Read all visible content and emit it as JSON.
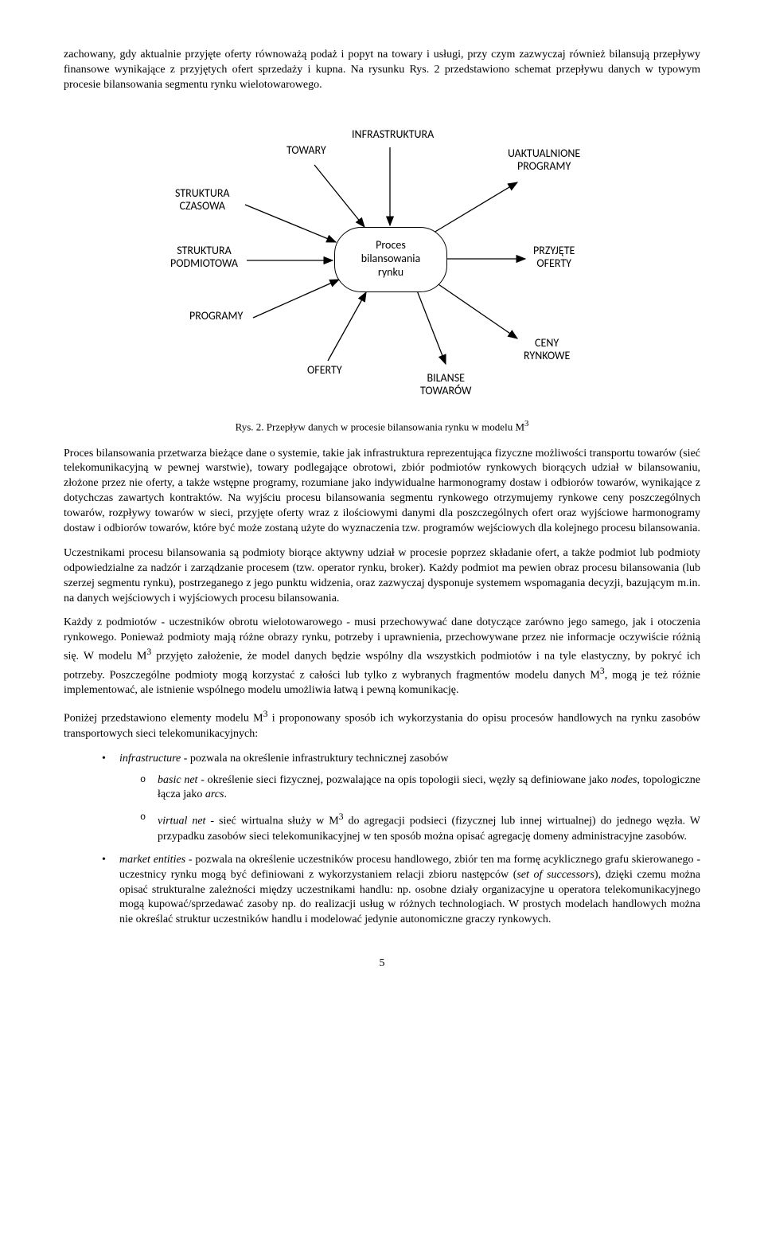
{
  "intro": "zachowany, gdy aktualnie przyjęte oferty równoważą podaż i popyt na towary i usługi, przy czym zazwyczaj również bilansują przepływy finansowe wynikające z przyjętych ofert sprzedaży i kupna. Na rysunku Rys. 2 przedstawiono schemat przepływu danych w typowym procesie bilansowania segmentu rynku wielotowarowego.",
  "diagram": {
    "center": "Proces\nbilansowania\nrynku",
    "labels": {
      "towary": "TOWARY",
      "infra": "INFRASTRUKTURA",
      "uakt": "UAKTUALNIONE\nPROGRAMY",
      "str_czas": "STRUKTURA\nCZASOWA",
      "str_podm": "STRUKTURA\nPODMIOTOWA",
      "przyjete": "PRZYJĘTE\nOFERTY",
      "programy": "PROGRAMY",
      "oferty": "OFERTY",
      "bilanse": "BILANSE\nTOWARÓW",
      "ceny": "CENY\nRYNKOWE"
    },
    "arrows_color": "#000000",
    "caption_prefix": "Rys. 2. ",
    "caption_rest": "Przepływ danych w procesie bilansowania rynku w modelu M",
    "caption_sup": "3"
  },
  "p1": "Proces bilansowania przetwarza bieżące dane o systemie, takie jak infrastruktura reprezentująca fizyczne możliwości transportu towarów (sieć telekomunikacyjną w pewnej warstwie), towary podlegające obrotowi, zbiór podmiotów rynkowych biorących udział w bilansowaniu, złożone przez nie oferty, a także wstępne programy, rozumiane jako indywidualne harmonogramy dostaw i odbiorów towarów, wynikające z dotychczas zawartych kontraktów. Na wyjściu procesu bilansowania segmentu rynkowego otrzymujemy rynkowe ceny poszczególnych towarów, rozpływy towarów w sieci, przyjęte oferty wraz z ilościowymi danymi dla poszczególnych ofert oraz wyjściowe harmonogramy dostaw i odbiorów towarów, które być może zostaną użyte do wyznaczenia tzw. programów wejściowych dla kolejnego procesu bilansowania.",
  "p2": "Uczestnikami procesu bilansowania są podmioty biorące aktywny udział w procesie poprzez składanie ofert, a także podmiot lub podmioty odpowiedzialne za nadzór i zarządzanie procesem (tzw. operator rynku, broker). Każdy podmiot ma pewien obraz procesu bilansowania (lub szerzej segmentu rynku), postrzeganego z jego punktu widzenia, oraz zazwyczaj dysponuje systemem wspomagania decyzji, bazującym m.in. na danych wejściowych i wyjściowych procesu bilansowania.",
  "p3_a": "Każdy z podmiotów - uczestników obrotu wielotowarowego - musi przechowywać dane dotyczące zarówno jego samego, jak i otoczenia rynkowego. Ponieważ podmioty mają różne obrazy rynku, potrzeby i uprawnienia, przechowywane przez nie informacje oczywiście różnią się. W modelu M",
  "p3_b": " przyjęto założenie, że model danych będzie wspólny dla wszystkich podmiotów i na tyle elastyczny, by pokryć ich potrzeby. Poszczególne podmioty mogą korzystać z całości lub tylko z wybranych fragmentów modelu danych M",
  "p3_c": ", mogą je też różnie implementować, ale istnienie wspólnego modelu umożliwia łatwą i pewną komunikację.",
  "p4_a": "Poniżej przedstawiono elementy modelu M",
  "p4_b": " i proponowany sposób ich wykorzystania do opisu procesów handlowych na rynku zasobów transportowych sieci telekomunikacyjnych:",
  "sup3": "3",
  "bullets": {
    "b1_label": "infrastructure",
    "b1_rest": " - pozwala na określenie infrastruktury technicznej zasobów",
    "b1a_label": "basic net",
    "b1a_rest_a": " - określenie sieci fizycznej, pozwalające na opis topologii sieci, węzły są definiowane jako ",
    "b1a_nodes": "nodes",
    "b1a_rest_b": ", topologiczne łącza jako ",
    "b1a_arcs": "arcs",
    "b1a_rest_c": ".",
    "b1b_label": "virtual net",
    "b1b_mid_a": " - sieć wirtualna służy w M",
    "b1b_mid_b": " do agregacji podsieci (fizycznej lub innej wirtualnej) do jednego węzła. W przypadku zasobów sieci telekomunikacyjnej w ten sposób można opisać agregację domeny administracyjne zasobów.",
    "b2_label": "market entities",
    "b2_rest_a": " - pozwala na określenie uczestników procesu handlowego, zbiór ten ma formę acyklicznego grafu skierowanego - uczestnicy rynku mogą być definiowani z wykorzystaniem relacji zbioru następców (",
    "b2_set": "set of successors",
    "b2_rest_b": "), dzięki czemu można opisać strukturalne zależności między uczestnikami handlu: np. osobne działy organizacyjne u operatora telekomunikacyjnego mogą kupować/sprzedawać zasoby np. do realizacji usług w różnych technologiach. W prostych modelach handlowych można nie określać struktur uczestników handlu i modelować jedynie autonomiczne graczy rynkowych."
  },
  "page_number": "5"
}
